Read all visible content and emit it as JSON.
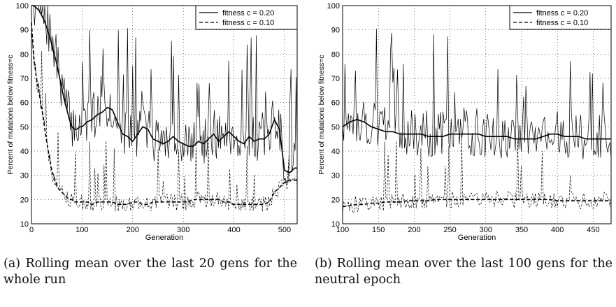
{
  "chart_data": [
    {
      "type": "line",
      "panel": "(a)",
      "caption": "(a) Rolling mean over the last 20 gens for the whole run",
      "xlabel": "Generation",
      "ylabel": "Percent of mutations below fitness=c",
      "xlim": [
        0,
        525
      ],
      "ylim": [
        10,
        100
      ],
      "xticks": [
        0,
        100,
        200,
        300,
        400,
        500
      ],
      "yticks": [
        10,
        20,
        30,
        40,
        50,
        60,
        70,
        80,
        90,
        100
      ],
      "grid": true,
      "legend_position": "top-right",
      "series": [
        {
          "name": "fitness c = 0.20",
          "style": "solid",
          "x": [
            0,
            5,
            10,
            15,
            20,
            25,
            30,
            35,
            40,
            45,
            50,
            55,
            60,
            65,
            70,
            75,
            80,
            85,
            90,
            95,
            100,
            110,
            120,
            130,
            140,
            150,
            160,
            170,
            180,
            190,
            200,
            210,
            220,
            230,
            240,
            250,
            260,
            270,
            280,
            290,
            300,
            310,
            320,
            330,
            340,
            350,
            360,
            370,
            380,
            390,
            400,
            410,
            420,
            430,
            440,
            450,
            460,
            470,
            480,
            490,
            500,
            510,
            520,
            525
          ],
          "values": [
            100,
            100,
            99,
            98,
            96,
            94,
            91,
            88,
            84,
            80,
            76,
            71,
            66,
            61,
            57,
            53,
            50,
            49,
            49,
            50,
            50,
            52,
            53,
            55,
            56,
            58,
            57,
            52,
            47,
            46,
            44,
            47,
            50,
            49,
            45,
            44,
            43,
            44,
            46,
            44,
            43,
            42,
            42,
            44,
            43,
            45,
            47,
            44,
            46,
            48,
            46,
            44,
            43,
            46,
            44,
            45,
            45,
            47,
            53,
            49,
            32,
            31,
            33,
            33
          ]
        },
        {
          "name": "fitness c = 0.10",
          "style": "dashed",
          "x": [
            0,
            5,
            10,
            15,
            20,
            25,
            30,
            35,
            40,
            45,
            50,
            55,
            60,
            65,
            70,
            75,
            80,
            85,
            90,
            95,
            100,
            110,
            120,
            130,
            140,
            150,
            160,
            170,
            180,
            190,
            200,
            210,
            220,
            230,
            240,
            250,
            260,
            270,
            280,
            290,
            300,
            310,
            320,
            330,
            340,
            350,
            360,
            370,
            380,
            390,
            400,
            410,
            420,
            430,
            440,
            450,
            460,
            470,
            480,
            490,
            500,
            510,
            520,
            525
          ],
          "values": [
            93,
            78,
            70,
            64,
            58,
            51,
            44,
            38,
            32,
            29,
            26,
            24,
            23,
            22,
            21,
            20,
            20,
            19,
            19,
            19,
            19,
            19,
            18,
            19,
            19,
            19,
            19,
            18,
            18,
            18,
            19,
            19,
            18,
            18,
            19,
            19,
            19,
            19,
            19,
            19,
            19,
            19,
            20,
            20,
            20,
            20,
            20,
            20,
            19,
            19,
            18,
            18,
            18,
            18,
            18,
            18,
            18,
            19,
            23,
            25,
            27,
            28,
            28,
            28
          ]
        }
      ]
    },
    {
      "type": "line",
      "panel": "(b)",
      "caption": "(b) Rolling mean over the last 100 gens for the neutral epoch",
      "xlabel": "Generation",
      "ylabel": "Percent of mutations below fitness=c",
      "xlim": [
        100,
        475
      ],
      "ylim": [
        10,
        100
      ],
      "xticks": [
        100,
        150,
        200,
        250,
        300,
        350,
        400,
        450
      ],
      "yticks": [
        10,
        20,
        30,
        40,
        50,
        60,
        70,
        80,
        90,
        100
      ],
      "grid": true,
      "legend_position": "top-right",
      "series": [
        {
          "name": "fitness c = 0.20",
          "style": "solid",
          "x": [
            100,
            110,
            120,
            130,
            140,
            150,
            160,
            170,
            180,
            190,
            200,
            210,
            220,
            230,
            240,
            250,
            260,
            270,
            280,
            290,
            300,
            310,
            320,
            330,
            340,
            350,
            360,
            370,
            380,
            390,
            400,
            410,
            420,
            430,
            440,
            450,
            460,
            470,
            475
          ],
          "values": [
            50,
            52,
            53,
            52,
            50,
            49,
            48,
            48,
            47,
            47,
            47,
            47,
            46,
            46,
            46,
            47,
            47,
            47,
            47,
            47,
            46,
            46,
            46,
            46,
            45,
            45,
            45,
            45,
            46,
            47,
            47,
            46,
            46,
            46,
            45,
            45,
            45,
            45,
            45
          ]
        },
        {
          "name": "fitness c = 0.10",
          "style": "dashed",
          "x": [
            100,
            110,
            120,
            130,
            140,
            150,
            160,
            170,
            180,
            190,
            200,
            210,
            220,
            230,
            240,
            250,
            260,
            270,
            280,
            290,
            300,
            310,
            320,
            330,
            340,
            350,
            360,
            370,
            380,
            390,
            400,
            410,
            420,
            430,
            440,
            450,
            460,
            470,
            475
          ],
          "values": [
            17,
            17.5,
            18,
            18,
            18.5,
            18.5,
            19,
            19,
            19,
            19.5,
            19.5,
            19.5,
            19.5,
            20,
            20,
            20,
            20,
            20,
            20,
            20,
            20,
            20,
            20,
            20,
            20,
            20,
            20,
            20,
            20,
            20,
            19.5,
            19.5,
            19.5,
            19.5,
            19.5,
            19.5,
            19.5,
            19.5,
            19.5
          ]
        }
      ]
    }
  ]
}
